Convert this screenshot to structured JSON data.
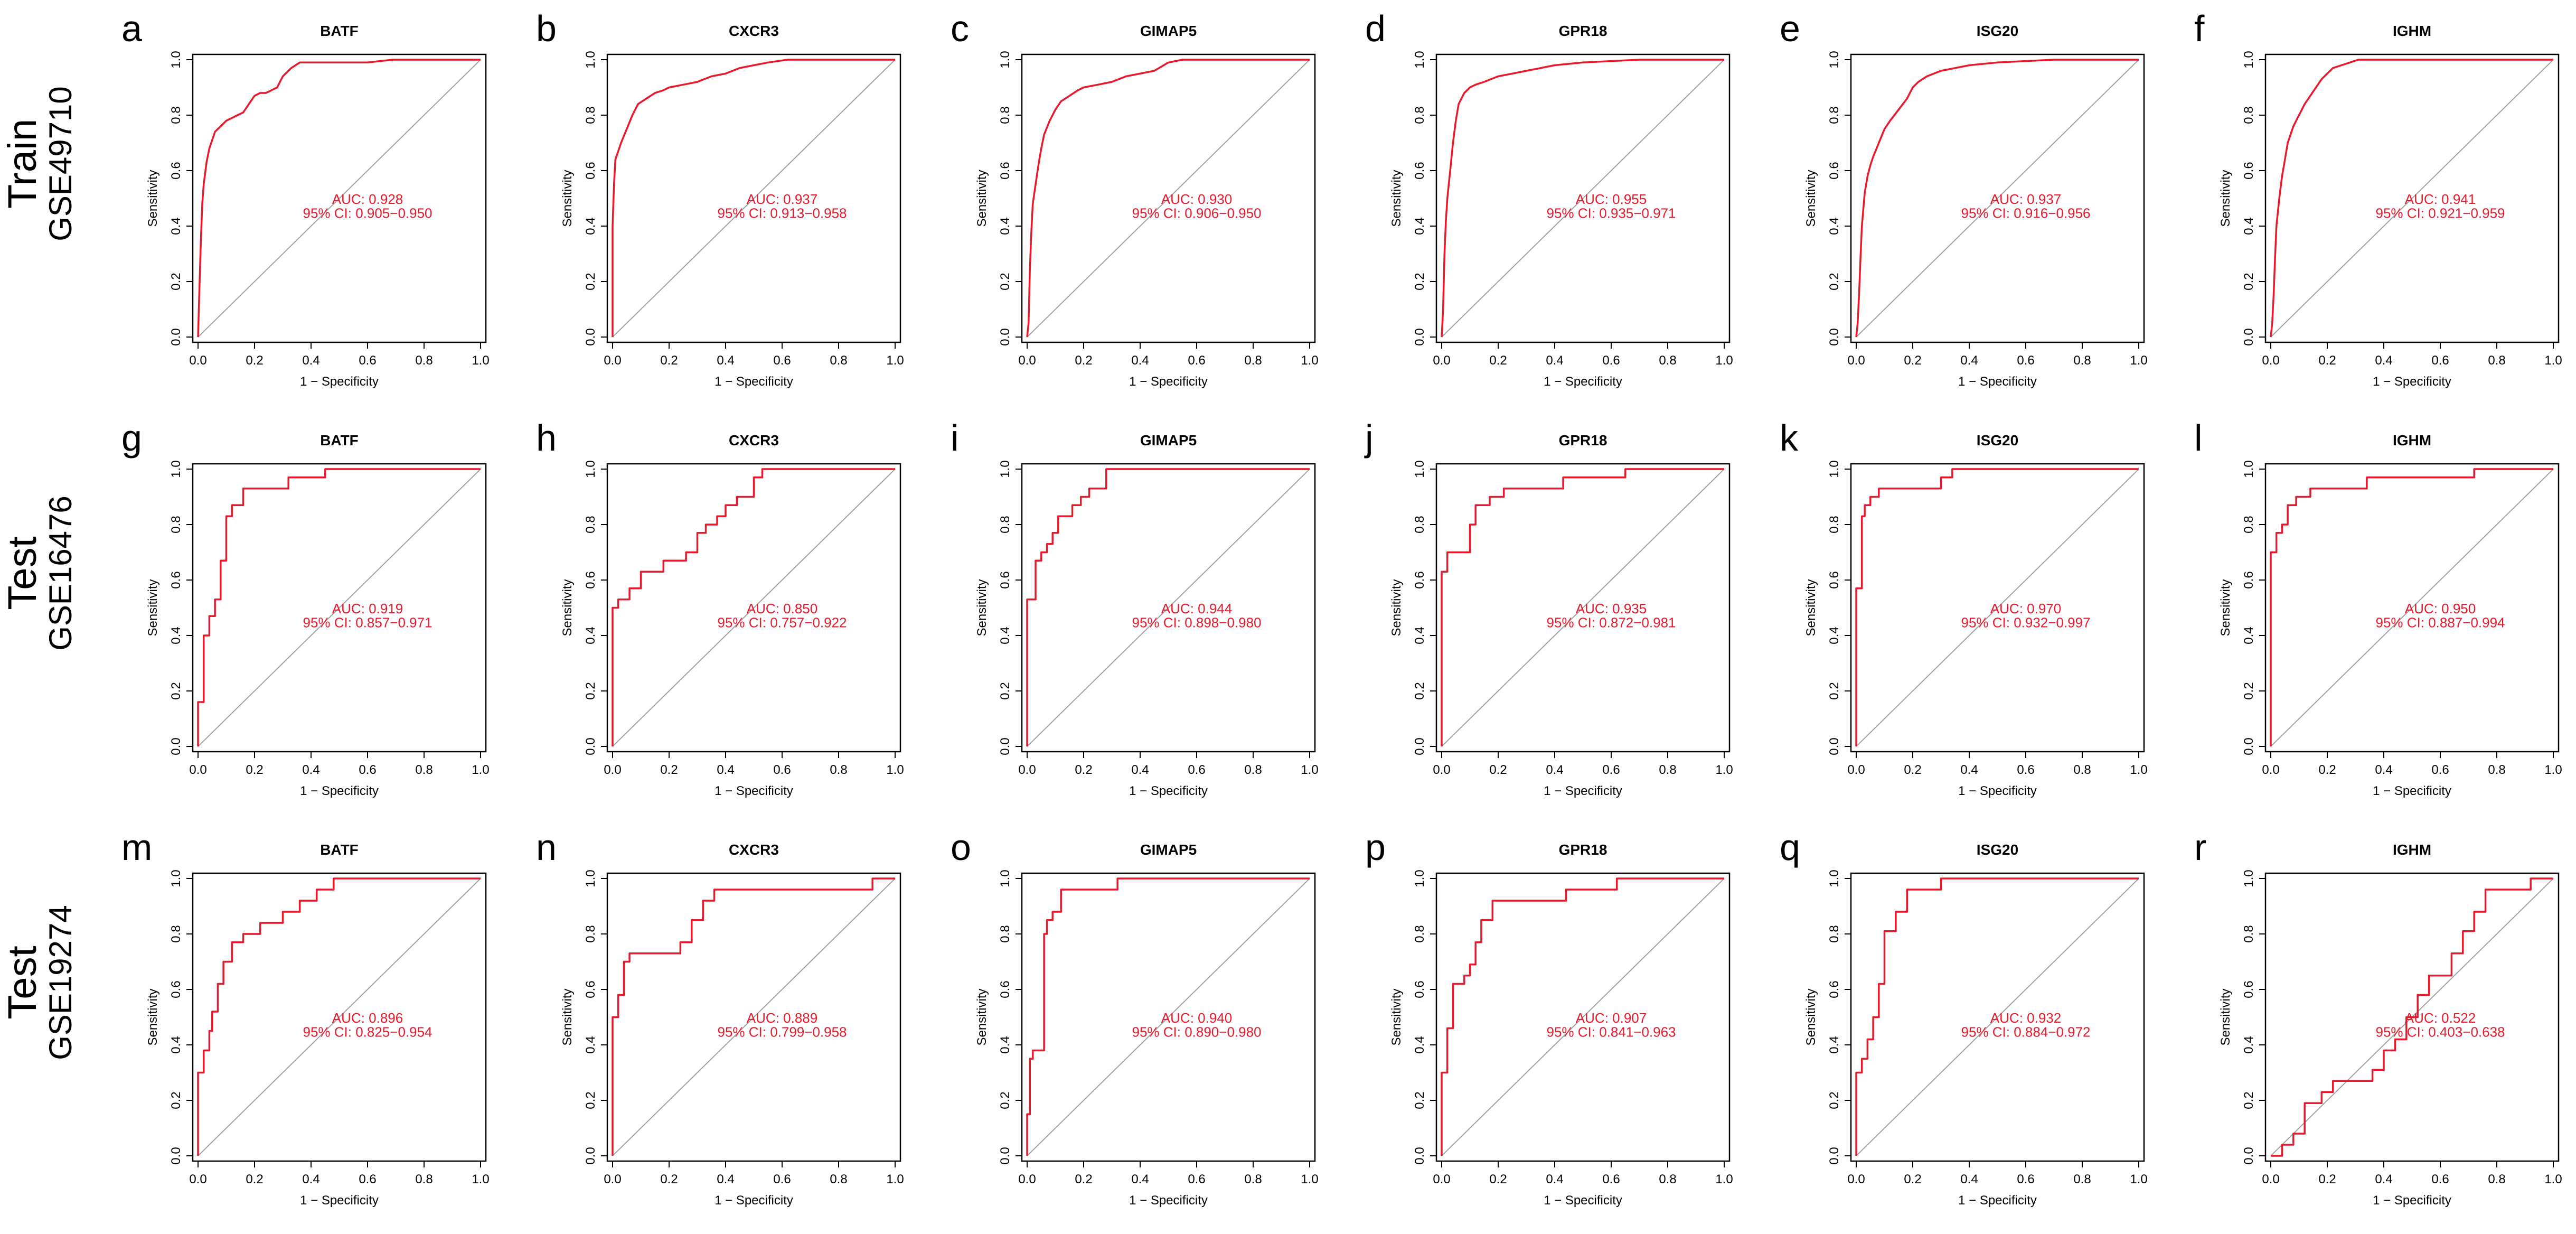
{
  "figure": {
    "rows": [
      {
        "label_main": "Train",
        "label_sub": "GSE49710"
      },
      {
        "label_main": "Test",
        "label_sub": "GSE16476"
      },
      {
        "label_main": "Test",
        "label_sub": "GSE19274"
      }
    ],
    "colors": {
      "curve": "#e8192c",
      "diagonal": "#9a9a9a",
      "axis": "#000000",
      "text": "#000000"
    }
  },
  "chart_data": [
    {
      "type": "line",
      "panel": "a",
      "title": "BATF",
      "xlabel": "1 − Specificity",
      "ylabel": "Sensitivity",
      "xlim": [
        0,
        1
      ],
      "ylim": [
        0,
        1
      ],
      "ticks": [
        "0.0",
        "0.2",
        "0.4",
        "0.6",
        "0.8",
        "1.0"
      ],
      "auc_label": "AUC: 0.928",
      "ci_label": "95% CI: 0.905−0.950",
      "x": [
        0,
        0.005,
        0.01,
        0.015,
        0.02,
        0.03,
        0.04,
        0.05,
        0.06,
        0.08,
        0.1,
        0.12,
        0.14,
        0.16,
        0.18,
        0.2,
        0.22,
        0.24,
        0.26,
        0.28,
        0.3,
        0.33,
        0.36,
        0.45,
        0.6,
        0.69,
        0.8,
        1
      ],
      "y": [
        0,
        0.18,
        0.35,
        0.48,
        0.55,
        0.63,
        0.68,
        0.71,
        0.74,
        0.76,
        0.78,
        0.79,
        0.8,
        0.81,
        0.84,
        0.87,
        0.88,
        0.88,
        0.89,
        0.9,
        0.94,
        0.97,
        0.99,
        0.99,
        0.99,
        1,
        1,
        1
      ]
    },
    {
      "type": "line",
      "panel": "b",
      "title": "CXCR3",
      "xlabel": "1 − Specificity",
      "ylabel": "Sensitivity",
      "xlim": [
        0,
        1
      ],
      "ylim": [
        0,
        1
      ],
      "ticks": [
        "0.0",
        "0.2",
        "0.4",
        "0.6",
        "0.8",
        "1.0"
      ],
      "auc_label": "AUC: 0.937",
      "ci_label": "95% CI: 0.913−0.958",
      "x": [
        0,
        0,
        0.005,
        0.01,
        0.02,
        0.03,
        0.05,
        0.07,
        0.09,
        0.12,
        0.15,
        0.18,
        0.2,
        0.25,
        0.3,
        0.35,
        0.4,
        0.45,
        0.5,
        0.55,
        0.62,
        0.7,
        1
      ],
      "y": [
        0,
        0.4,
        0.55,
        0.64,
        0.67,
        0.7,
        0.75,
        0.8,
        0.84,
        0.86,
        0.88,
        0.89,
        0.9,
        0.91,
        0.92,
        0.94,
        0.95,
        0.97,
        0.98,
        0.99,
        1,
        1,
        1
      ]
    },
    {
      "type": "line",
      "panel": "c",
      "title": "GIMAP5",
      "xlabel": "1 − Specificity",
      "ylabel": "Sensitivity",
      "xlim": [
        0,
        1
      ],
      "ylim": [
        0,
        1
      ],
      "ticks": [
        "0.0",
        "0.2",
        "0.4",
        "0.6",
        "0.8",
        "1.0"
      ],
      "auc_label": "AUC: 0.930",
      "ci_label": "95% CI: 0.906−0.950",
      "x": [
        0,
        0.005,
        0.01,
        0.015,
        0.02,
        0.03,
        0.04,
        0.05,
        0.06,
        0.08,
        0.1,
        0.12,
        0.15,
        0.18,
        0.2,
        0.25,
        0.3,
        0.35,
        0.4,
        0.45,
        0.5,
        0.55,
        1
      ],
      "y": [
        0,
        0.05,
        0.25,
        0.38,
        0.48,
        0.55,
        0.62,
        0.68,
        0.73,
        0.78,
        0.82,
        0.85,
        0.87,
        0.89,
        0.9,
        0.91,
        0.92,
        0.94,
        0.95,
        0.96,
        0.99,
        1,
        1
      ]
    },
    {
      "type": "line",
      "panel": "d",
      "title": "GPR18",
      "xlabel": "1 − Specificity",
      "ylabel": "Sensitivity",
      "xlim": [
        0,
        1
      ],
      "ylim": [
        0,
        1
      ],
      "ticks": [
        "0.0",
        "0.2",
        "0.4",
        "0.6",
        "0.8",
        "1.0"
      ],
      "auc_label": "AUC: 0.955",
      "ci_label": "95% CI: 0.935−0.971",
      "x": [
        0,
        0.005,
        0.01,
        0.015,
        0.02,
        0.03,
        0.04,
        0.05,
        0.06,
        0.08,
        0.1,
        0.12,
        0.15,
        0.2,
        0.25,
        0.3,
        0.35,
        0.4,
        0.5,
        0.6,
        0.7,
        1
      ],
      "y": [
        0,
        0.1,
        0.3,
        0.42,
        0.5,
        0.6,
        0.7,
        0.78,
        0.84,
        0.88,
        0.9,
        0.91,
        0.92,
        0.94,
        0.95,
        0.96,
        0.97,
        0.98,
        0.99,
        0.995,
        1,
        1
      ]
    },
    {
      "type": "line",
      "panel": "e",
      "title": "ISG20",
      "xlabel": "1 − Specificity",
      "ylabel": "Sensitivity",
      "xlim": [
        0,
        1
      ],
      "ylim": [
        0,
        1
      ],
      "ticks": [
        "0.0",
        "0.2",
        "0.4",
        "0.6",
        "0.8",
        "1.0"
      ],
      "auc_label": "AUC: 0.937",
      "ci_label": "95% CI: 0.916−0.956",
      "x": [
        0,
        0.005,
        0.01,
        0.015,
        0.02,
        0.03,
        0.04,
        0.05,
        0.06,
        0.08,
        0.1,
        0.12,
        0.15,
        0.18,
        0.2,
        0.22,
        0.25,
        0.3,
        0.35,
        0.4,
        0.5,
        0.6,
        0.7,
        1
      ],
      "y": [
        0,
        0.05,
        0.15,
        0.28,
        0.4,
        0.52,
        0.58,
        0.62,
        0.65,
        0.7,
        0.75,
        0.78,
        0.82,
        0.86,
        0.9,
        0.92,
        0.94,
        0.96,
        0.97,
        0.98,
        0.99,
        0.995,
        1,
        1
      ]
    },
    {
      "type": "line",
      "panel": "f",
      "title": "IGHM",
      "xlabel": "1 − Specificity",
      "ylabel": "Sensitivity",
      "xlim": [
        0,
        1
      ],
      "ylim": [
        0,
        1
      ],
      "ticks": [
        "0.0",
        "0.2",
        "0.4",
        "0.6",
        "0.8",
        "1.0"
      ],
      "auc_label": "AUC: 0.941",
      "ci_label": "95% CI: 0.921−0.959",
      "x": [
        0,
        0.005,
        0.01,
        0.015,
        0.02,
        0.03,
        0.04,
        0.05,
        0.06,
        0.08,
        0.1,
        0.12,
        0.14,
        0.16,
        0.18,
        0.2,
        0.22,
        0.25,
        0.28,
        0.31,
        0.35,
        1
      ],
      "y": [
        0,
        0.05,
        0.15,
        0.28,
        0.4,
        0.5,
        0.58,
        0.64,
        0.7,
        0.76,
        0.8,
        0.84,
        0.87,
        0.9,
        0.93,
        0.95,
        0.97,
        0.98,
        0.99,
        1,
        1,
        1
      ]
    },
    {
      "type": "line",
      "panel": "g",
      "title": "BATF",
      "xlabel": "1 − Specificity",
      "ylabel": "Sensitivity",
      "xlim": [
        0,
        1
      ],
      "ylim": [
        0,
        1
      ],
      "ticks": [
        "0.0",
        "0.2",
        "0.4",
        "0.6",
        "0.8",
        "1.0"
      ],
      "auc_label": "AUC: 0.919",
      "ci_label": "95% CI: 0.857−0.971",
      "x": [
        0,
        0,
        0.02,
        0.02,
        0.04,
        0.04,
        0.06,
        0.06,
        0.08,
        0.08,
        0.1,
        0.1,
        0.12,
        0.12,
        0.16,
        0.16,
        0.32,
        0.32,
        0.45,
        0.45,
        1
      ],
      "y": [
        0,
        0.16,
        0.16,
        0.4,
        0.4,
        0.47,
        0.47,
        0.53,
        0.53,
        0.67,
        0.67,
        0.83,
        0.83,
        0.87,
        0.87,
        0.93,
        0.93,
        0.97,
        0.97,
        1,
        1
      ]
    },
    {
      "type": "line",
      "panel": "h",
      "title": "CXCR3",
      "xlabel": "1 − Specificity",
      "ylabel": "Sensitivity",
      "xlim": [
        0,
        1
      ],
      "ylim": [
        0,
        1
      ],
      "ticks": [
        "0.0",
        "0.2",
        "0.4",
        "0.6",
        "0.8",
        "1.0"
      ],
      "auc_label": "AUC: 0.850",
      "ci_label": "95% CI: 0.757−0.922",
      "x": [
        0,
        0,
        0.02,
        0.02,
        0.06,
        0.06,
        0.1,
        0.1,
        0.18,
        0.18,
        0.26,
        0.26,
        0.3,
        0.3,
        0.33,
        0.33,
        0.37,
        0.37,
        0.4,
        0.4,
        0.44,
        0.44,
        0.5,
        0.5,
        0.53,
        0.53,
        1
      ],
      "y": [
        0,
        0.5,
        0.5,
        0.53,
        0.53,
        0.57,
        0.57,
        0.63,
        0.63,
        0.67,
        0.67,
        0.7,
        0.7,
        0.77,
        0.77,
        0.8,
        0.8,
        0.83,
        0.83,
        0.87,
        0.87,
        0.9,
        0.9,
        0.97,
        0.97,
        1,
        1
      ]
    },
    {
      "type": "line",
      "panel": "i",
      "title": "GIMAP5",
      "xlabel": "1 − Specificity",
      "ylabel": "Sensitivity",
      "xlim": [
        0,
        1
      ],
      "ylim": [
        0,
        1
      ],
      "ticks": [
        "0.0",
        "0.2",
        "0.4",
        "0.6",
        "0.8",
        "1.0"
      ],
      "auc_label": "AUC: 0.944",
      "ci_label": "95% CI: 0.898−0.980",
      "x": [
        0,
        0,
        0.03,
        0.03,
        0.05,
        0.05,
        0.07,
        0.07,
        0.09,
        0.09,
        0.11,
        0.11,
        0.16,
        0.16,
        0.19,
        0.19,
        0.22,
        0.22,
        0.28,
        0.28,
        1
      ],
      "y": [
        0,
        0.53,
        0.53,
        0.67,
        0.67,
        0.7,
        0.7,
        0.73,
        0.73,
        0.77,
        0.77,
        0.83,
        0.83,
        0.87,
        0.87,
        0.9,
        0.9,
        0.93,
        0.93,
        1,
        1
      ]
    },
    {
      "type": "line",
      "panel": "j",
      "title": "GPR18",
      "xlabel": "1 − Specificity",
      "ylabel": "Sensitivity",
      "xlim": [
        0,
        1
      ],
      "ylim": [
        0,
        1
      ],
      "ticks": [
        "0.0",
        "0.2",
        "0.4",
        "0.6",
        "0.8",
        "1.0"
      ],
      "auc_label": "AUC: 0.935",
      "ci_label": "95% CI: 0.872−0.981",
      "x": [
        0,
        0,
        0.02,
        0.02,
        0.04,
        0.04,
        0.1,
        0.1,
        0.12,
        0.12,
        0.17,
        0.17,
        0.22,
        0.22,
        0.43,
        0.43,
        0.65,
        0.65,
        1
      ],
      "y": [
        0,
        0.63,
        0.63,
        0.7,
        0.7,
        0.7,
        0.7,
        0.8,
        0.8,
        0.87,
        0.87,
        0.9,
        0.9,
        0.93,
        0.93,
        0.97,
        0.97,
        1,
        1
      ]
    },
    {
      "type": "line",
      "panel": "k",
      "title": "ISG20",
      "xlabel": "1 − Specificity",
      "ylabel": "Sensitivity",
      "xlim": [
        0,
        1
      ],
      "ylim": [
        0,
        1
      ],
      "ticks": [
        "0.0",
        "0.2",
        "0.4",
        "0.6",
        "0.8",
        "1.0"
      ],
      "auc_label": "AUC: 0.970",
      "ci_label": "95% CI: 0.932−0.997",
      "x": [
        0,
        0,
        0.02,
        0.02,
        0.03,
        0.03,
        0.05,
        0.05,
        0.08,
        0.08,
        0.3,
        0.3,
        0.34,
        0.34,
        1
      ],
      "y": [
        0,
        0.57,
        0.57,
        0.83,
        0.83,
        0.87,
        0.87,
        0.9,
        0.9,
        0.93,
        0.93,
        0.97,
        0.97,
        1,
        1
      ]
    },
    {
      "type": "line",
      "panel": "l",
      "title": "IGHM",
      "xlabel": "1 − Specificity",
      "ylabel": "Sensitivity",
      "xlim": [
        0,
        1
      ],
      "ylim": [
        0,
        1
      ],
      "ticks": [
        "0.0",
        "0.2",
        "0.4",
        "0.6",
        "0.8",
        "1.0"
      ],
      "auc_label": "AUC: 0.950",
      "ci_label": "95% CI: 0.887−0.994",
      "x": [
        0,
        0,
        0.02,
        0.02,
        0.04,
        0.04,
        0.06,
        0.06,
        0.09,
        0.09,
        0.14,
        0.14,
        0.34,
        0.34,
        0.72,
        0.72,
        1
      ],
      "y": [
        0,
        0.7,
        0.7,
        0.77,
        0.77,
        0.8,
        0.8,
        0.87,
        0.87,
        0.9,
        0.9,
        0.93,
        0.93,
        0.97,
        0.97,
        1,
        1
      ]
    },
    {
      "type": "line",
      "panel": "m",
      "title": "BATF",
      "xlabel": "1 − Specificity",
      "ylabel": "Sensitivity",
      "xlim": [
        0,
        1
      ],
      "ylim": [
        0,
        1
      ],
      "ticks": [
        "0.0",
        "0.2",
        "0.4",
        "0.6",
        "0.8",
        "1.0"
      ],
      "auc_label": "AUC: 0.896",
      "ci_label": "95% CI: 0.825−0.954",
      "x": [
        0,
        0,
        0.02,
        0.02,
        0.04,
        0.04,
        0.05,
        0.05,
        0.07,
        0.07,
        0.09,
        0.09,
        0.12,
        0.12,
        0.16,
        0.16,
        0.22,
        0.22,
        0.3,
        0.3,
        0.36,
        0.36,
        0.42,
        0.42,
        0.48,
        0.48,
        1
      ],
      "y": [
        0,
        0.3,
        0.3,
        0.38,
        0.38,
        0.45,
        0.45,
        0.52,
        0.52,
        0.62,
        0.62,
        0.7,
        0.7,
        0.77,
        0.77,
        0.8,
        0.8,
        0.84,
        0.84,
        0.88,
        0.88,
        0.92,
        0.92,
        0.96,
        0.96,
        1,
        1
      ]
    },
    {
      "type": "line",
      "panel": "n",
      "title": "CXCR3",
      "xlabel": "1 − Specificity",
      "ylabel": "Sensitivity",
      "xlim": [
        0,
        1
      ],
      "ylim": [
        0,
        1
      ],
      "ticks": [
        "0.0",
        "0.2",
        "0.4",
        "0.6",
        "0.8",
        "1.0"
      ],
      "auc_label": "AUC: 0.889",
      "ci_label": "95% CI: 0.799−0.958",
      "x": [
        0,
        0,
        0.02,
        0.02,
        0.04,
        0.04,
        0.06,
        0.06,
        0.24,
        0.24,
        0.28,
        0.28,
        0.32,
        0.32,
        0.36,
        0.36,
        0.92,
        0.92,
        1
      ],
      "y": [
        0,
        0.5,
        0.5,
        0.58,
        0.58,
        0.7,
        0.7,
        0.73,
        0.73,
        0.77,
        0.77,
        0.85,
        0.85,
        0.92,
        0.92,
        0.96,
        0.96,
        1,
        1
      ]
    },
    {
      "type": "line",
      "panel": "o",
      "title": "GIMAP5",
      "xlabel": "1 − Specificity",
      "ylabel": "Sensitivity",
      "xlim": [
        0,
        1
      ],
      "ylim": [
        0,
        1
      ],
      "ticks": [
        "0.0",
        "0.2",
        "0.4",
        "0.6",
        "0.8",
        "1.0"
      ],
      "auc_label": "AUC: 0.940",
      "ci_label": "95% CI: 0.890−0.980",
      "x": [
        0,
        0,
        0.01,
        0.01,
        0.02,
        0.02,
        0.04,
        0.04,
        0.06,
        0.06,
        0.07,
        0.07,
        0.09,
        0.09,
        0.12,
        0.12,
        0.32,
        0.32,
        1
      ],
      "y": [
        0,
        0.15,
        0.15,
        0.35,
        0.35,
        0.38,
        0.38,
        0.38,
        0.38,
        0.8,
        0.8,
        0.85,
        0.85,
        0.88,
        0.88,
        0.96,
        0.96,
        1,
        1
      ]
    },
    {
      "type": "line",
      "panel": "p",
      "title": "GPR18",
      "xlabel": "1 − Specificity",
      "ylabel": "Sensitivity",
      "xlim": [
        0,
        1
      ],
      "ylim": [
        0,
        1
      ],
      "ticks": [
        "0.0",
        "0.2",
        "0.4",
        "0.6",
        "0.8",
        "1.0"
      ],
      "auc_label": "AUC: 0.907",
      "ci_label": "95% CI: 0.841−0.963",
      "x": [
        0,
        0,
        0.02,
        0.02,
        0.04,
        0.04,
        0.06,
        0.06,
        0.08,
        0.08,
        0.1,
        0.1,
        0.12,
        0.12,
        0.14,
        0.14,
        0.18,
        0.18,
        0.44,
        0.44,
        0.62,
        0.62,
        1
      ],
      "y": [
        0,
        0.3,
        0.3,
        0.46,
        0.46,
        0.62,
        0.62,
        0.62,
        0.62,
        0.65,
        0.65,
        0.69,
        0.69,
        0.77,
        0.77,
        0.85,
        0.85,
        0.92,
        0.92,
        0.96,
        0.96,
        1,
        1
      ]
    },
    {
      "type": "line",
      "panel": "q",
      "title": "ISG20",
      "xlabel": "1 − Specificity",
      "ylabel": "Sensitivity",
      "xlim": [
        0,
        1
      ],
      "ylim": [
        0,
        1
      ],
      "ticks": [
        "0.0",
        "0.2",
        "0.4",
        "0.6",
        "0.8",
        "1.0"
      ],
      "auc_label": "AUC: 0.932",
      "ci_label": "95% CI: 0.884−0.972",
      "x": [
        0,
        0,
        0.02,
        0.02,
        0.04,
        0.04,
        0.06,
        0.06,
        0.08,
        0.08,
        0.1,
        0.1,
        0.14,
        0.14,
        0.18,
        0.18,
        0.2,
        0.2,
        0.3,
        0.3,
        1
      ],
      "y": [
        0,
        0.3,
        0.3,
        0.35,
        0.35,
        0.42,
        0.42,
        0.5,
        0.5,
        0.62,
        0.62,
        0.81,
        0.81,
        0.88,
        0.88,
        0.96,
        0.96,
        0.96,
        0.96,
        1,
        1
      ]
    },
    {
      "type": "line",
      "panel": "r",
      "title": "IGHM",
      "xlabel": "1 − Specificity",
      "ylabel": "Sensitivity",
      "xlim": [
        0,
        1
      ],
      "ylim": [
        0,
        1
      ],
      "ticks": [
        "0.0",
        "0.2",
        "0.4",
        "0.6",
        "0.8",
        "1.0"
      ],
      "auc_label": "AUC: 0.522",
      "ci_label": "95% CI: 0.403−0.638",
      "x": [
        0,
        0.04,
        0.04,
        0.08,
        0.08,
        0.12,
        0.12,
        0.18,
        0.18,
        0.22,
        0.22,
        0.28,
        0.28,
        0.36,
        0.36,
        0.4,
        0.4,
        0.44,
        0.44,
        0.48,
        0.48,
        0.52,
        0.52,
        0.56,
        0.56,
        0.64,
        0.64,
        0.68,
        0.68,
        0.72,
        0.72,
        0.76,
        0.76,
        0.84,
        0.84,
        0.92,
        0.92,
        1
      ],
      "y": [
        0,
        0,
        0.04,
        0.04,
        0.08,
        0.08,
        0.19,
        0.19,
        0.23,
        0.23,
        0.27,
        0.27,
        0.27,
        0.27,
        0.31,
        0.31,
        0.38,
        0.38,
        0.42,
        0.42,
        0.5,
        0.5,
        0.58,
        0.58,
        0.65,
        0.65,
        0.73,
        0.73,
        0.81,
        0.81,
        0.88,
        0.88,
        0.96,
        0.96,
        0.96,
        0.96,
        1,
        1
      ]
    }
  ]
}
